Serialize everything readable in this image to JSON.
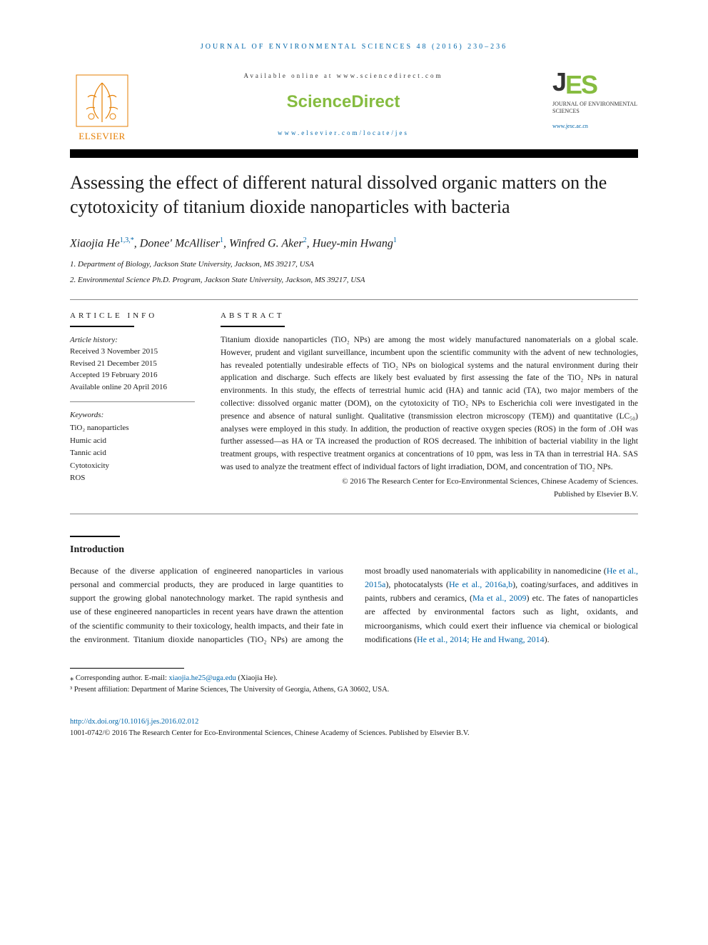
{
  "header": {
    "citation": "JOURNAL OF ENVIRONMENTAL SCIENCES 48 (2016) 230–236",
    "available_at": "Available online at www.sciencedirect.com",
    "sciencedirect": "ScienceDirect",
    "locate_url": "www.elsevier.com/locate/jes",
    "elsevier_label": "ELSEVIER",
    "jes_logo_prefix": "J",
    "jes_logo_suffix": "ES",
    "jes_subtitle": "JOURNAL OF ENVIRONMENTAL SCIENCES",
    "jes_url": "www.jesc.ac.cn"
  },
  "article": {
    "title": "Assessing the effect of different natural dissolved organic matters on the cytotoxicity of titanium dioxide nanoparticles with bacteria",
    "authors_html": "Xiaojia He<sup>1,3,*</sup>, Donee' McAlliser<sup>1</sup>, Winfred G. Aker<sup>2</sup>, Huey-min Hwang<sup>1</sup>",
    "affiliations": [
      "1. Department of Biology, Jackson State University, Jackson, MS 39217, USA",
      "2. Environmental Science Ph.D. Program, Jackson State University, Jackson, MS 39217, USA"
    ]
  },
  "info": {
    "heading": "ARTICLE INFO",
    "history_label": "Article history:",
    "history": [
      "Received 3 November 2015",
      "Revised 21 December 2015",
      "Accepted 19 February 2016",
      "Available online 20 April 2016"
    ],
    "keywords_label": "Keywords:",
    "keywords": [
      "TiO₂ nanoparticles",
      "Humic acid",
      "Tannic acid",
      "Cytotoxicity",
      "ROS"
    ]
  },
  "abstract": {
    "heading": "ABSTRACT",
    "text": "Titanium dioxide nanoparticles (TiO₂ NPs) are among the most widely manufactured nanomaterials on a global scale. However, prudent and vigilant surveillance, incumbent upon the scientific community with the advent of new technologies, has revealed potentially undesirable effects of TiO₂ NPs on biological systems and the natural environment during their application and discharge. Such effects are likely best evaluated by first assessing the fate of the TiO₂ NPs in natural environments. In this study, the effects of terrestrial humic acid (HA) and tannic acid (TA), two major members of the collective: dissolved organic matter (DOM), on the cytotoxicity of TiO₂ NPs to Escherichia coli were investigated in the presence and absence of natural sunlight. Qualitative (transmission electron microscopy (TEM)) and quantitative (LC₅₀) analyses were employed in this study. In addition, the production of reactive oxygen species (ROS) in the form of .OH was further assessed—as HA or TA increased the production of ROS decreased. The inhibition of bacterial viability in the light treatment groups, with respective treatment organics at concentrations of 10 ppm, was less in TA than in terrestrial HA. SAS was used to analyze the treatment effect of individual factors of light irradiation, DOM, and concentration of TiO₂ NPs.",
    "copyright1": "© 2016 The Research Center for Eco-Environmental Sciences, Chinese Academy of Sciences.",
    "copyright2": "Published by Elsevier B.V."
  },
  "introduction": {
    "heading": "Introduction",
    "para1_part1": "Because of the diverse application of engineered nanoparticles in various personal and commercial products, they are produced in large quantities to support the growing global nanotechnology market. The rapid synthesis and use of these engineered nanoparticles in recent years have drawn the attention of the scientific community to their toxicology, health impacts, and their fate in the environment. Titanium dioxide nanoparticles (TiO₂ NPs) are among the most broadly used nanomaterials with applicability in nanomedicine (",
    "ref1": "He et al., 2015a",
    "mid1": "), photocatalysts (",
    "ref2": "He et al., 2016a,b",
    "mid2": "), coating/surfaces, and additives in paints, rubbers and ceramics, (",
    "ref3": "Ma et al., 2009",
    "mid3": ") etc. The fates of nanoparticles are affected by environmental factors such as light, oxidants, and microorganisms, which could exert their influence via chemical or biological modifications (",
    "ref4": "He et al., 2014; He and Hwang, 2014",
    "end": ")."
  },
  "footnotes": {
    "corr_label": "⁎ Corresponding author. E-mail: ",
    "corr_email": "xiaojia.he25@uga.edu",
    "corr_name": " (Xiaojia He).",
    "note3": "³ Present affiliation: Department of Marine Sciences, The University of Georgia, Athens, GA 30602, USA."
  },
  "doi": {
    "link": "http://dx.doi.org/10.1016/j.jes.2016.02.012",
    "line": "1001-0742/© 2016 The Research Center for Eco-Environmental Sciences, Chinese Academy of Sciences. Published by Elsevier B.V."
  },
  "colors": {
    "link": "#0066aa",
    "accent_green": "#86bc40",
    "elsevier_orange": "#e67e00",
    "text": "#1a1a1a",
    "rule_light": "#888888"
  },
  "typography": {
    "title_fontsize": 26,
    "body_fontsize": 12,
    "abstract_fontsize": 11.5,
    "heading_letterspacing": 4
  }
}
